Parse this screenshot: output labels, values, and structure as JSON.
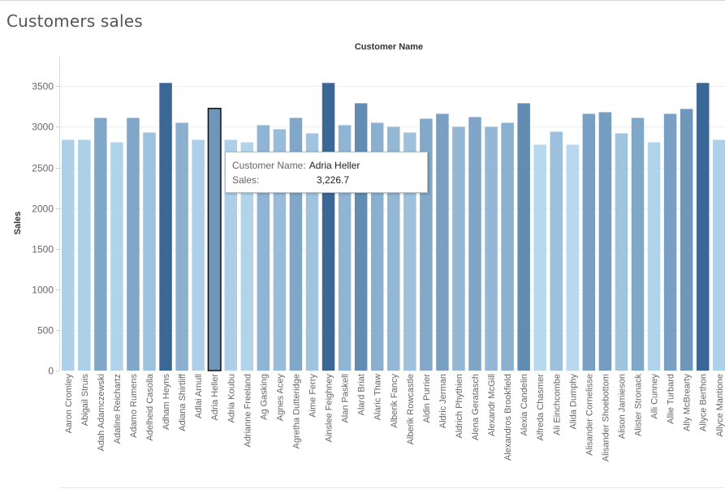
{
  "page": {
    "title": "Customers sales"
  },
  "tooltip": {
    "name_key": "Customer Name:",
    "name_value": "Adria Heller",
    "sales_key": "Sales:",
    "sales_value": "3,226.7"
  },
  "colors": {
    "min": "#b7d8ef",
    "max": "#3a6795",
    "highlight_border": "#111111"
  },
  "chart_data": {
    "type": "bar",
    "title": "Customers sales",
    "xlabel": "Customer Name",
    "ylabel": "Sales",
    "ylim": [
      0,
      3600
    ],
    "yticks": [
      0,
      500,
      1000,
      1500,
      2000,
      2500,
      3000,
      3500
    ],
    "ytick_labels": [
      "0",
      "500",
      "1000",
      "1500",
      "2000",
      "2500",
      "3000",
      "3500"
    ],
    "grid": true,
    "highlighted": "Adria Heller",
    "categories": [
      "Aaron Cromley",
      "Abigail Struis",
      "Adah Adamczewski",
      "Adaline Reichartz",
      "Adamo Rumens",
      "Adelheid Casolla",
      "Adham Heyns",
      "Adiana Shirtliff",
      "Adlai Arnull",
      "Adria Heller",
      "Adria Koubu",
      "Adrianne Freeland",
      "Ag Gasking",
      "Agnes Acey",
      "Agretha Dutteridge",
      "Aime Ferry",
      "Ainslee Feighney",
      "Alan Paskell",
      "Alard Briat",
      "Alaric Thaw",
      "Alberik Fancy",
      "Alberik Rowcastle",
      "Aldin Purrier",
      "Aldric Jerman",
      "Aldrich Phythien",
      "Alena Geratasch",
      "Alexandr McGill",
      "Alexandros Brookfield",
      "Alexia Candelin",
      "Alfreda Chasmer",
      "Ali Einchcombe",
      "Alida Dumphy",
      "Alisander Cornelisse",
      "Alisander Shoebottom",
      "Alison Jamieson",
      "Alister Stronack",
      "Alli Cunney",
      "Allie Turbard",
      "Ally McBrearty",
      "Allyce Berthon",
      "Allyce Mantione"
    ],
    "values": [
      2840,
      2840,
      3110,
      2810,
      3110,
      2930,
      3540,
      3050,
      2840,
      3226.7,
      2840,
      2810,
      3020,
      2970,
      3110,
      2920,
      3540,
      3020,
      3290,
      3050,
      3000,
      2930,
      3100,
      3160,
      3000,
      3120,
      3000,
      3050,
      3290,
      2780,
      2940,
      2780,
      3160,
      3180,
      2920,
      3110,
      2810,
      3160,
      3220,
      3540,
      2840
    ]
  }
}
